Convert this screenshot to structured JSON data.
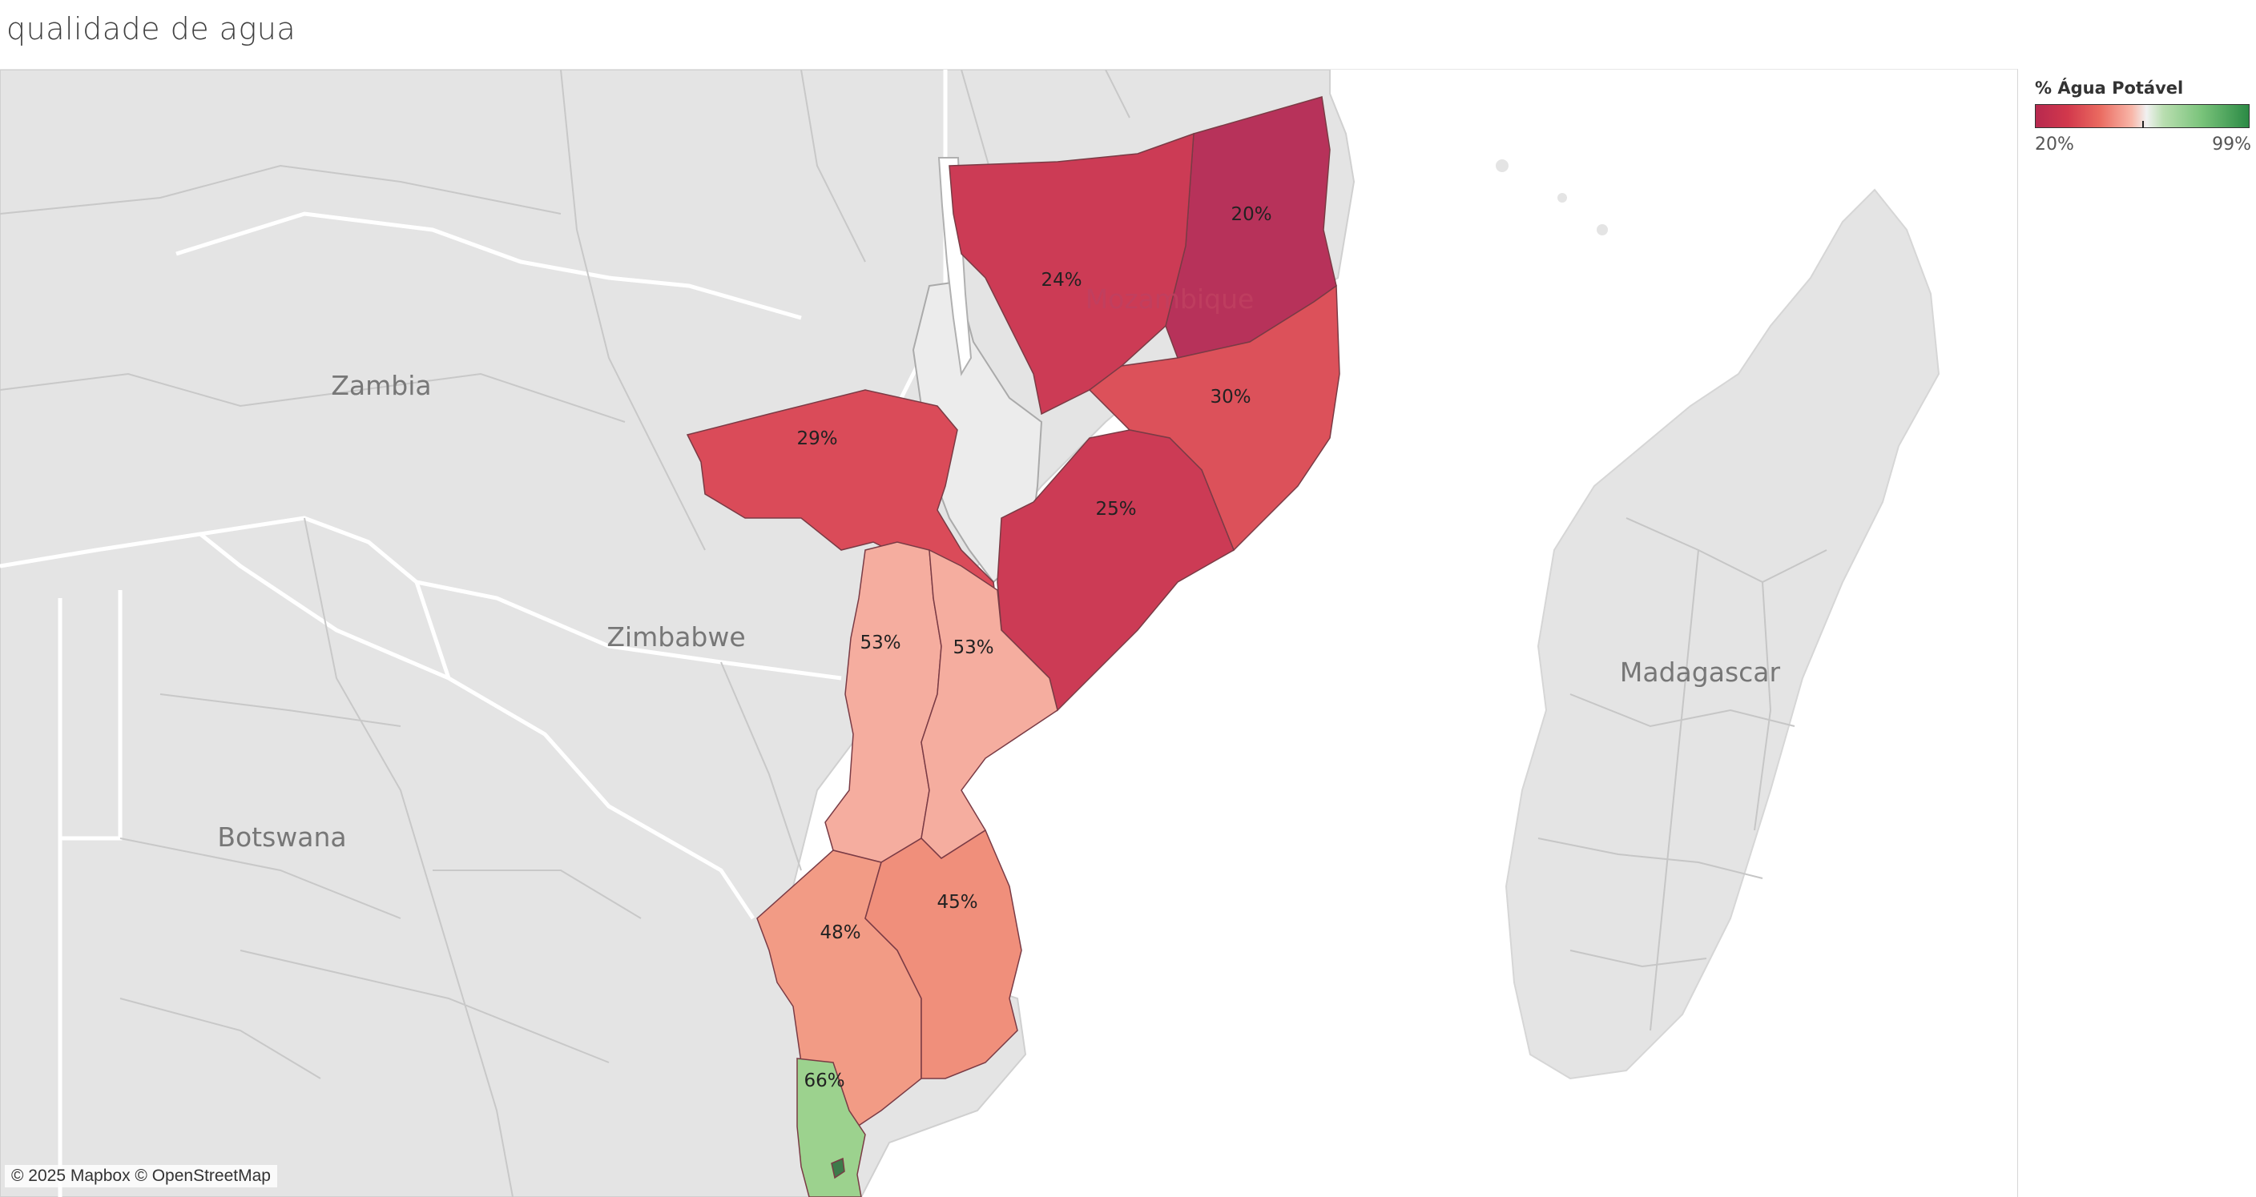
{
  "title": "qualidade de agua",
  "legend": {
    "title": "% Água Potável",
    "min_label": "20%",
    "max_label": "99%",
    "colors": {
      "low": "#b7294f",
      "mid": "#f1f1f1",
      "high": "#2b8a45"
    }
  },
  "attribution": "© 2025 Mapbox © OpenStreetMap",
  "countries": {
    "zambia": "Zambia",
    "zimbabwe": "Zimbabwe",
    "botswana": "Botswana",
    "mozambique": "Mozambique",
    "madagascar": "Madagascar"
  },
  "regions": [
    {
      "label": "20%",
      "value": 20,
      "color": "#b7325a"
    },
    {
      "label": "24%",
      "value": 24,
      "color": "#cc3b55"
    },
    {
      "label": "30%",
      "value": 30,
      "color": "#dc515a"
    },
    {
      "label": "29%",
      "value": 29,
      "color": "#da4b59"
    },
    {
      "label": "25%",
      "value": 25,
      "color": "#cc3b55"
    },
    {
      "label": "53%",
      "value": 53,
      "color": "#f5ad9f"
    },
    {
      "label": "53%",
      "value": 53,
      "color": "#f5ad9f"
    },
    {
      "label": "48%",
      "value": 48,
      "color": "#f29b85"
    },
    {
      "label": "45%",
      "value": 45,
      "color": "#f08f7b"
    },
    {
      "label": "66%",
      "value": 66,
      "color": "#9cd28e"
    }
  ]
}
